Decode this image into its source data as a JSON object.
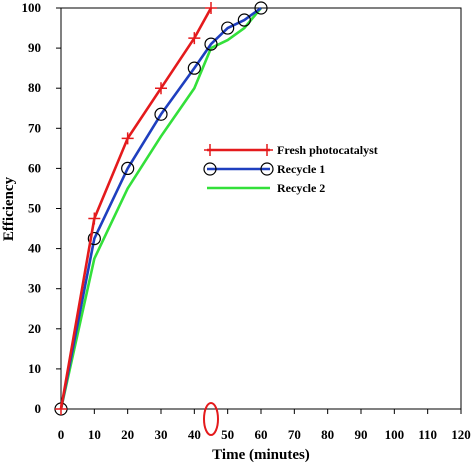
{
  "chart_data": {
    "type": "line",
    "title": "",
    "xlabel": "Time (minutes)",
    "ylabel": "Efficiency",
    "xlim": [
      0,
      120
    ],
    "ylim": [
      0,
      100
    ],
    "x_ticks": [
      0,
      10,
      20,
      30,
      40,
      50,
      60,
      70,
      80,
      90,
      100,
      110,
      120
    ],
    "y_ticks": [
      0,
      10,
      20,
      30,
      40,
      50,
      60,
      70,
      80,
      90,
      100
    ],
    "grid": false,
    "legend_position": "middle-right",
    "series": [
      {
        "name": "Fresh photocatalyst",
        "color": "#e41a1c",
        "marker": "plus",
        "x": [
          0,
          10,
          20,
          30,
          40,
          45
        ],
        "y": [
          0,
          47.5,
          67.5,
          80,
          92.5,
          100
        ]
      },
      {
        "name": "Recycle 1",
        "color": "#1f3fbf",
        "marker": "circle",
        "x": [
          0,
          10,
          20,
          30,
          40,
          45,
          50,
          55,
          60
        ],
        "y": [
          0,
          42.5,
          60,
          73.5,
          85,
          91,
          95,
          97,
          100
        ]
      },
      {
        "name": "Recycle 2",
        "color": "#33e03a",
        "marker": "none",
        "x": [
          0,
          10,
          20,
          30,
          40,
          45,
          50,
          55,
          60
        ],
        "y": [
          0,
          37.5,
          55,
          68,
          80,
          90,
          92,
          95,
          100
        ]
      }
    ],
    "annotations": [
      {
        "type": "ellipse",
        "x": 45,
        "color": "#e41a1c"
      }
    ]
  }
}
